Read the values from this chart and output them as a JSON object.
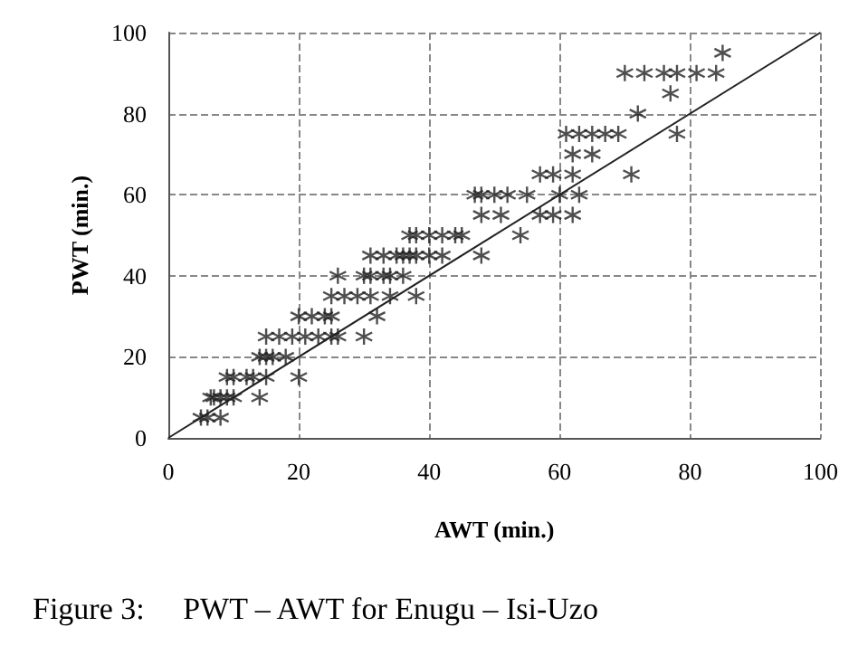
{
  "chart_data": {
    "type": "scatter",
    "xlabel": "AWT (min.)",
    "ylabel": "PWT (min.)",
    "annotations": [
      "Figure 3:     PWT – AWT for Enugu – Isi-Uzo"
    ],
    "xlim": [
      0,
      100
    ],
    "ylim": [
      0,
      100
    ],
    "xticks": [
      0,
      20,
      40,
      60,
      80,
      100
    ],
    "yticks": [
      0,
      20,
      40,
      60,
      80,
      100
    ],
    "grid": true,
    "marker": "cross",
    "series": [
      {
        "color": "#222222",
        "x": [
          5,
          6,
          8,
          6.5,
          7,
          8,
          9,
          10,
          14,
          9,
          10,
          12,
          13,
          15,
          20,
          14,
          15,
          16,
          18,
          15,
          17,
          19,
          21,
          23,
          25,
          26,
          30,
          20,
          22,
          24,
          25,
          32,
          25,
          27,
          29,
          31,
          34,
          38,
          26,
          30,
          31,
          33,
          34,
          36,
          31,
          33,
          35,
          36,
          37,
          38,
          40,
          42,
          48,
          37,
          38,
          40,
          42,
          44,
          45,
          54,
          48,
          51,
          57,
          59,
          62,
          47,
          48,
          50,
          52,
          55,
          60,
          63,
          57,
          59,
          62,
          71,
          62,
          65,
          61,
          63,
          65,
          67,
          69,
          78,
          72,
          77,
          70,
          73,
          76,
          78,
          81,
          84,
          85
        ],
        "values": [
          5,
          5,
          5,
          10,
          10,
          10,
          10,
          10,
          10,
          15,
          15,
          15,
          15,
          15,
          15,
          20,
          20,
          20,
          20,
          25,
          25,
          25,
          25,
          25,
          25,
          25,
          25,
          30,
          30,
          30,
          30,
          30,
          35,
          35,
          35,
          35,
          35,
          35,
          40,
          40,
          40,
          40,
          40,
          40,
          45,
          45,
          45,
          45,
          45,
          45,
          45,
          45,
          45,
          50,
          50,
          50,
          50,
          50,
          50,
          50,
          55,
          55,
          55,
          55,
          55,
          60,
          60,
          60,
          60,
          60,
          60,
          60,
          65,
          65,
          65,
          65,
          70,
          70,
          75,
          75,
          75,
          75,
          75,
          75,
          80,
          85,
          90,
          90,
          90,
          90,
          90,
          90,
          95
        ]
      },
      {
        "type": "line",
        "color": "#222222",
        "x": [
          0,
          100
        ],
        "values": [
          0,
          100
        ],
        "marker": "none",
        "line_style": "solid"
      }
    ]
  }
}
